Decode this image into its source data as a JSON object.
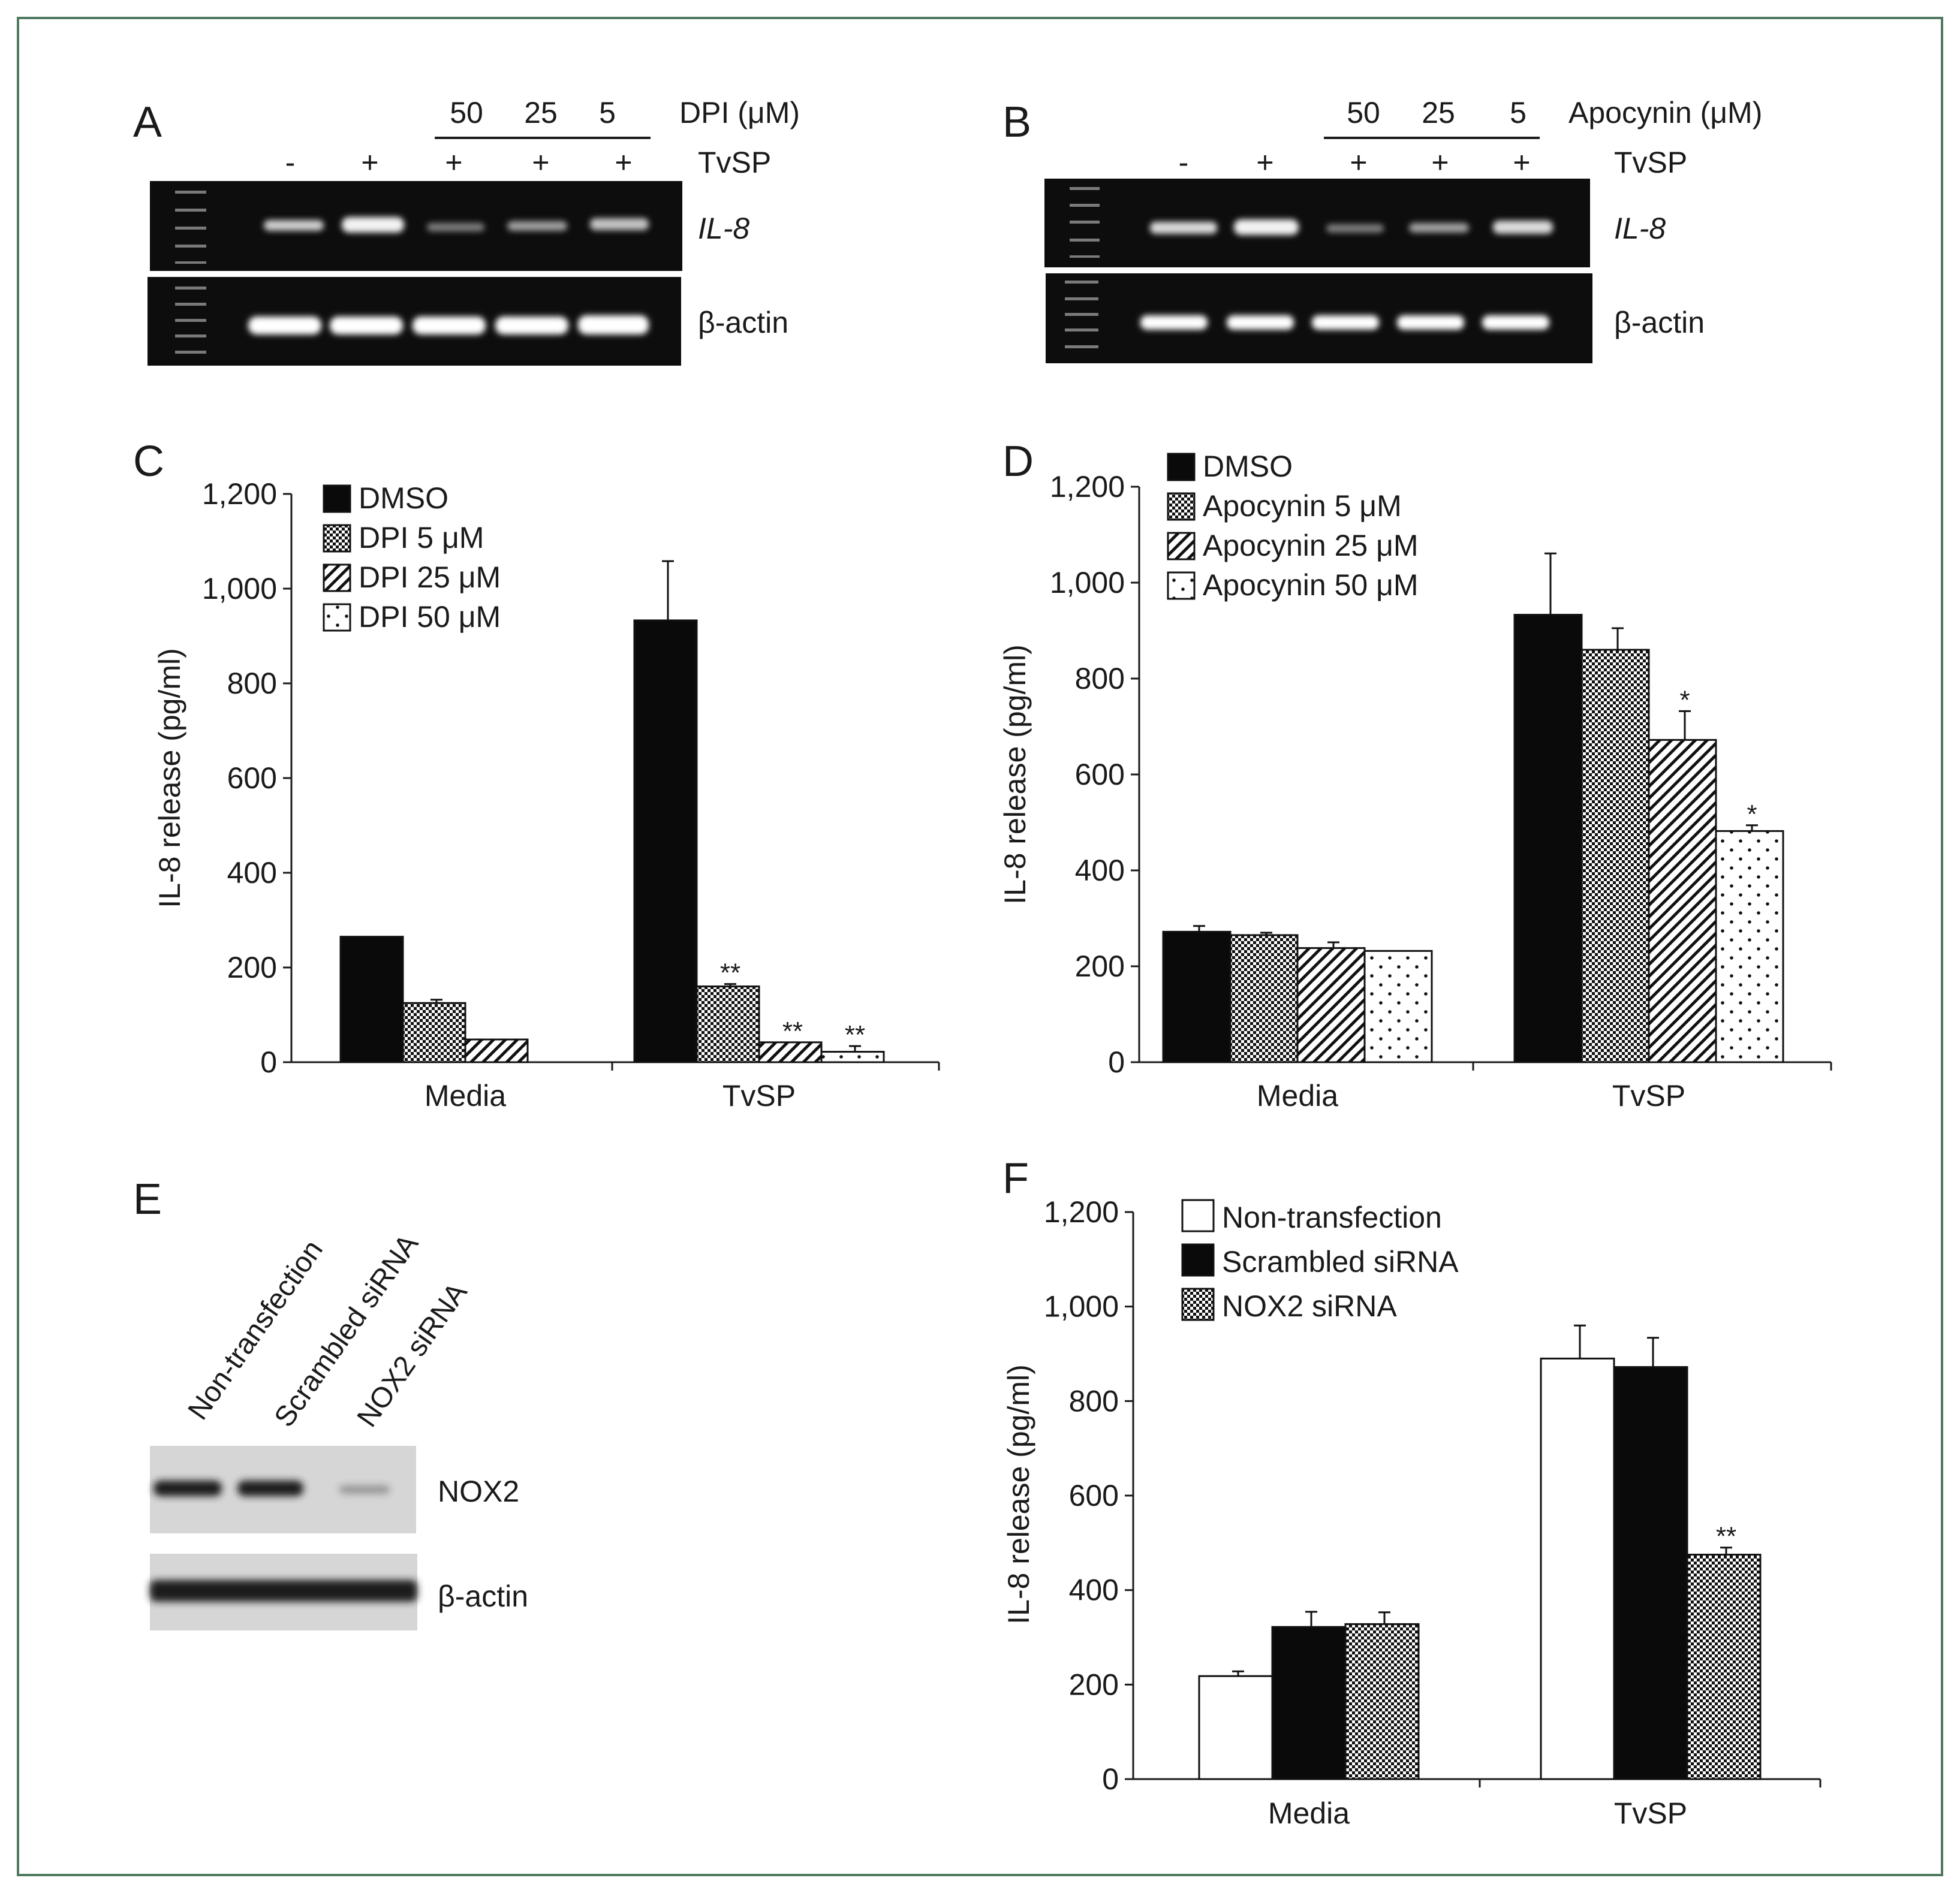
{
  "colors": {
    "frame": "#4f7a5f",
    "ink": "#1a1a1a",
    "gel": "#0d0d0d",
    "band": "#f2f2f2",
    "blot_bg": "#d6d6d6",
    "blot_band": "#1e1e1e"
  },
  "panels": {
    "A": {
      "letter": "A",
      "doses": [
        "50",
        "25",
        "5"
      ],
      "dose_label": "DPI (μM)",
      "signs": [
        "-",
        "+",
        "+",
        "+",
        "+"
      ],
      "treatment_label": "TvSP",
      "gene_label": "IL-8",
      "control_label": "β-actin"
    },
    "B": {
      "letter": "B",
      "doses": [
        "50",
        "25",
        "5"
      ],
      "dose_label": "Apocynin (μM)",
      "signs": [
        "-",
        "+",
        "+",
        "+",
        "+"
      ],
      "treatment_label": "TvSP",
      "gene_label": "IL-8",
      "control_label": "β-actin"
    },
    "C": {
      "letter": "C"
    },
    "D": {
      "letter": "D"
    },
    "E": {
      "letter": "E",
      "lane_labels": [
        "Non-transfection",
        "Scrambled siRNA",
        "NOX2 siRNA"
      ],
      "band_labels": [
        "NOX2",
        "β-actin"
      ]
    },
    "F": {
      "letter": "F"
    }
  },
  "chart_data": [
    {
      "id": "C",
      "type": "bar",
      "title": "",
      "xlabel": "",
      "ylabel": "IL-8 release (pg/ml)",
      "ylim": [
        0,
        1200
      ],
      "yticks": [
        0,
        200,
        400,
        600,
        800,
        1000,
        1200
      ],
      "ytick_labels": [
        "0",
        "200",
        "400",
        "600",
        "800",
        "1,000",
        "1,200"
      ],
      "categories": [
        "Media",
        "TvSP"
      ],
      "series": [
        {
          "name": "DMSO",
          "pattern": "solid",
          "values": [
            265,
            933
          ],
          "errors": [
            0,
            125
          ]
        },
        {
          "name": "DPI 5 μM",
          "pattern": "check",
          "values": [
            125,
            160
          ],
          "errors": [
            7,
            5
          ],
          "annotations": [
            "",
            "**"
          ]
        },
        {
          "name": "DPI 25 μM",
          "pattern": "hatch",
          "values": [
            48,
            42
          ],
          "errors": [
            0,
            0
          ],
          "annotations": [
            "",
            "**"
          ]
        },
        {
          "name": "DPI 50 μM",
          "pattern": "dots",
          "values": [
            0,
            22
          ],
          "errors": [
            0,
            12
          ],
          "annotations": [
            "",
            "**"
          ]
        }
      ]
    },
    {
      "id": "D",
      "type": "bar",
      "title": "",
      "xlabel": "",
      "ylabel": "IL-8 release (pg/ml)",
      "ylim": [
        0,
        1200
      ],
      "yticks": [
        0,
        200,
        400,
        600,
        800,
        1000,
        1200
      ],
      "ytick_labels": [
        "0",
        "200",
        "400",
        "600",
        "800",
        "1,000",
        "1,200"
      ],
      "categories": [
        "Media",
        "TvSP"
      ],
      "series": [
        {
          "name": "DMSO",
          "pattern": "solid",
          "values": [
            272,
            933
          ],
          "errors": [
            12,
            128
          ]
        },
        {
          "name": "Apocynin 5 μM",
          "pattern": "check",
          "values": [
            265,
            860
          ],
          "errors": [
            5,
            45
          ]
        },
        {
          "name": "Apocynin 25 μM",
          "pattern": "hatch",
          "values": [
            238,
            672
          ],
          "errors": [
            12,
            60
          ],
          "annotations": [
            "",
            "*"
          ]
        },
        {
          "name": "Apocynin 50 μM",
          "pattern": "dots",
          "values": [
            232,
            482
          ],
          "errors": [
            0,
            12
          ],
          "annotations": [
            "",
            "*"
          ]
        }
      ]
    },
    {
      "id": "F",
      "type": "bar",
      "title": "",
      "xlabel": "",
      "ylabel": "IL-8 release (pg/ml)",
      "ylim": [
        0,
        1200
      ],
      "yticks": [
        0,
        200,
        400,
        600,
        800,
        1000,
        1200
      ],
      "ytick_labels": [
        "0",
        "200",
        "400",
        "600",
        "800",
        "1,000",
        "1,200"
      ],
      "categories": [
        "Media",
        "TvSP"
      ],
      "series": [
        {
          "name": "Non-transfection",
          "pattern": "white",
          "values": [
            218,
            890
          ],
          "errors": [
            10,
            70
          ]
        },
        {
          "name": "Scrambled siRNA",
          "pattern": "solid",
          "values": [
            322,
            872
          ],
          "errors": [
            32,
            62
          ]
        },
        {
          "name": "NOX2 siRNA",
          "pattern": "check",
          "values": [
            328,
            475
          ],
          "errors": [
            25,
            15
          ],
          "annotations": [
            "",
            "**"
          ]
        }
      ]
    }
  ]
}
